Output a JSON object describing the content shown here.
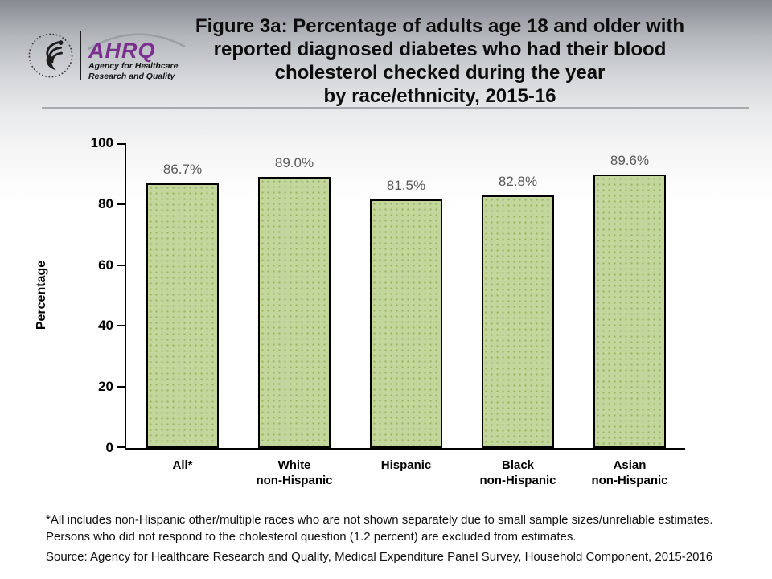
{
  "header": {
    "logo": {
      "acronym": "AHRQ",
      "line1": "Agency for Healthcare",
      "line2": "Research and Quality"
    },
    "title": "Figure 3a: Percentage of adults age 18 and older with\nreported diagnosed diabetes who had their blood\ncholesterol checked during the year\nby race/ethnicity, 2015-16"
  },
  "chart_data": {
    "type": "bar",
    "title": "Percentage of adults age 18 and older with reported diagnosed diabetes who had their blood cholesterol checked during the year, by race/ethnicity, 2015-16",
    "categories": [
      "All*",
      "White\nnon-Hispanic",
      "Hispanic",
      "Black\nnon-Hispanic",
      "Asian\nnon-Hispanic"
    ],
    "values": [
      86.7,
      89.0,
      81.5,
      82.8,
      89.6
    ],
    "data_labels": [
      "86.7%",
      "89.0%",
      "81.5%",
      "82.8%",
      "89.6%"
    ],
    "xlabel": "",
    "ylabel": "Percentage",
    "ylim": [
      0,
      100
    ],
    "yticks": [
      0,
      20,
      40,
      60,
      80,
      100
    ],
    "grid": false,
    "legend": false,
    "bar_fill": "#c3d69b",
    "bar_dot": "#96b35f",
    "bar_border": "#000000",
    "value_label_color": "#595959"
  },
  "footnotes": {
    "note": "*All includes non-Hispanic other/multiple races who are not shown separately due to small sample sizes/unreliable estimates.\nPersons who did not respond to the cholesterol question (1.2 percent) are excluded from estimates.",
    "source": "Source: Agency for Healthcare Research and Quality, Medical Expenditure Panel Survey, Household Component, 2015-2016"
  }
}
